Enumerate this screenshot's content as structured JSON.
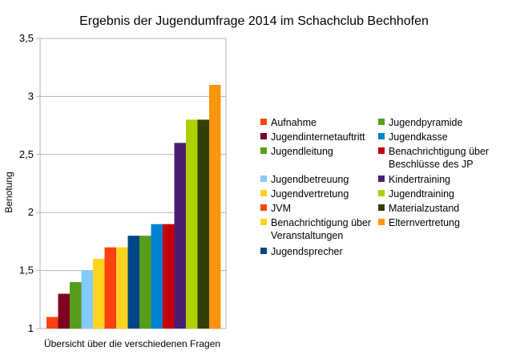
{
  "chart_data": {
    "type": "bar",
    "title": "Ergebnis der Jugendumfrage 2014 im Schachclub Bechhofen",
    "xlabel": "Übersicht über die verschiedenen Fragen",
    "ylabel": "Benotung",
    "ylim": [
      1,
      3.5
    ],
    "yticks": [
      "1",
      "1,5",
      "2",
      "2,5",
      "3",
      "3,5"
    ],
    "grid": "horizontal",
    "legend_position": "right",
    "series": [
      {
        "name": "Aufnahme",
        "value": 1.1,
        "color": "#ff420e"
      },
      {
        "name": "Jugendinternetauftritt",
        "value": 1.3,
        "color": "#7e0021"
      },
      {
        "name": "Jugendleitung",
        "value": 1.4,
        "color": "#579d1c"
      },
      {
        "name": "Jugendbetreuung",
        "value": 1.5,
        "color": "#83caff"
      },
      {
        "name": "Jugendvertretung",
        "value": 1.6,
        "color": "#ffd320"
      },
      {
        "name": "JVM",
        "value": 1.7,
        "color": "#ff420e"
      },
      {
        "name": "Benachrichtigung über Veranstaltungen",
        "value": 1.7,
        "color": "#ffd320"
      },
      {
        "name": "Jugendsprecher",
        "value": 1.8,
        "color": "#004586"
      },
      {
        "name": "Jugendpyramide",
        "value": 1.8,
        "color": "#579d1c"
      },
      {
        "name": "Jugendkasse",
        "value": 1.9,
        "color": "#0084d1"
      },
      {
        "name": "Benachrichtigung über Beschlüsse des JP",
        "value": 1.9,
        "color": "#c5000b"
      },
      {
        "name": "Kindertraining",
        "value": 2.6,
        "color": "#4b1f6f"
      },
      {
        "name": "Jugendtraining",
        "value": 2.8,
        "color": "#aecf00"
      },
      {
        "name": "Materialzustand",
        "value": 2.8,
        "color": "#314004"
      },
      {
        "name": "Elternvertretung",
        "value": 3.1,
        "color": "#ff950e"
      }
    ]
  }
}
